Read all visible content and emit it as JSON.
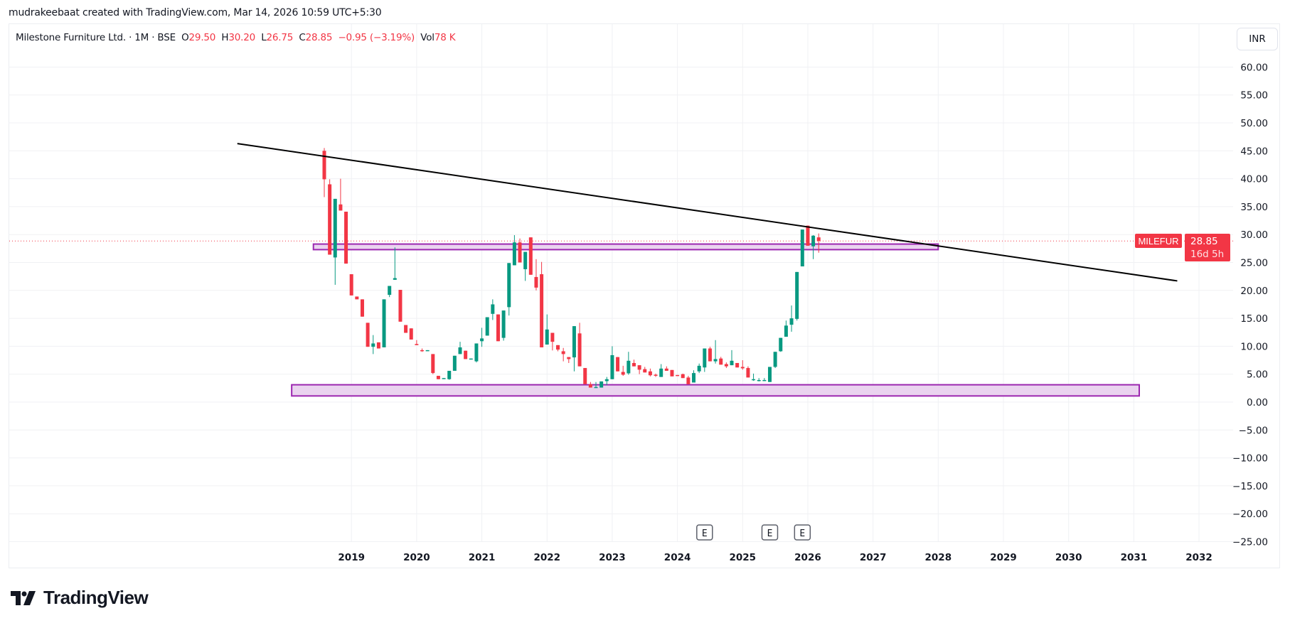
{
  "header": {
    "credit": "mudrakeebaat created with TradingView.com, Mar 14, 2026 10:59 UTC+5:30"
  },
  "legend": {
    "symbol_name": "Milestone Furniture Ltd.",
    "interval": "1M",
    "exchange": "BSE",
    "open_label": "O",
    "open": "29.50",
    "high_label": "H",
    "high": "30.20",
    "low_label": "L",
    "low": "26.75",
    "close_label": "C",
    "close": "28.85",
    "change": "−0.95 (−3.19%)",
    "vol_label": "Vol",
    "vol": "78 K",
    "separator": "·"
  },
  "currency": "INR",
  "price_tag": {
    "ticker": "MILEFUR",
    "price": "28.85",
    "countdown": "16d 5h"
  },
  "logo": {
    "text": "TradingView"
  },
  "colors": {
    "up": "#089981",
    "down": "#F23645",
    "zone_border": "#9C27B0",
    "zone_fill": "#EAD3EF",
    "trendline": "#000000",
    "grid": "#f0f1f4"
  },
  "chart_data": {
    "type": "candlestick",
    "interval": "1M",
    "start_month": "2018-08",
    "ylim": [
      -25,
      62
    ],
    "y_ticks": [
      "60.00",
      "55.00",
      "50.00",
      "45.00",
      "40.00",
      "35.00",
      "30.00",
      "25.00",
      "20.00",
      "15.00",
      "10.00",
      "5.00",
      "0.00",
      "−5.00",
      "−10.00",
      "−15.00",
      "−20.00",
      "−25.00"
    ],
    "x_ticks": [
      "2019",
      "2020",
      "2021",
      "2022",
      "2023",
      "2024",
      "2025",
      "2026",
      "2027",
      "2028",
      "2029",
      "2030",
      "2031",
      "2032"
    ],
    "last_price": 28.85,
    "candles": [
      [
        45.0,
        45.5,
        36.7,
        39.9
      ],
      [
        39.0,
        39.9,
        26.4,
        26.4
      ],
      [
        25.9,
        36.4,
        21.0,
        36.4
      ],
      [
        35.4,
        40.0,
        34.3,
        34.3
      ],
      [
        34.1,
        34.1,
        24.8,
        24.8
      ],
      [
        22.9,
        22.9,
        19.1,
        19.1
      ],
      [
        18.9,
        18.9,
        18.4,
        18.4
      ],
      [
        18.4,
        18.4,
        15.3,
        15.3
      ],
      [
        14.2,
        14.2,
        9.9,
        9.9
      ],
      [
        9.9,
        12.0,
        8.6,
        10.5
      ],
      [
        10.7,
        10.7,
        9.6,
        9.6
      ],
      [
        9.8,
        18.4,
        9.8,
        18.4
      ],
      [
        19.2,
        20.8,
        18.8,
        20.8
      ],
      [
        21.9,
        27.7,
        21.9,
        22.2
      ],
      [
        20.1,
        20.1,
        14.4,
        14.4
      ],
      [
        13.8,
        13.8,
        12.4,
        12.4
      ],
      [
        13.2,
        13.2,
        11.2,
        11.2
      ],
      [
        10.4,
        11.1,
        10.2,
        10.2
      ],
      [
        9.3,
        9.6,
        9.0,
        9.2
      ],
      [
        9.25,
        9.3,
        9.25,
        9.3
      ],
      [
        8.6,
        8.6,
        5.0,
        5.2
      ],
      [
        4.7,
        4.7,
        4.1,
        4.1
      ],
      [
        4.25,
        4.3,
        4.25,
        4.3
      ],
      [
        4.1,
        5.6,
        4.0,
        5.6
      ],
      [
        5.6,
        8.3,
        5.6,
        8.3
      ],
      [
        8.6,
        10.8,
        8.6,
        9.8
      ],
      [
        9.2,
        9.2,
        7.7,
        7.7
      ],
      [
        7.75,
        7.8,
        7.75,
        7.8
      ],
      [
        7.3,
        10.5,
        7.1,
        10.5
      ],
      [
        10.9,
        13.3,
        9.9,
        11.4
      ],
      [
        11.9,
        15.2,
        11.9,
        15.2
      ],
      [
        15.8,
        18.4,
        14.7,
        17.5
      ],
      [
        15.7,
        15.7,
        10.9,
        10.9
      ],
      [
        11.5,
        16.4,
        11.0,
        16.4
      ],
      [
        17.0,
        24.9,
        15.5,
        24.9
      ],
      [
        24.5,
        29.9,
        24.5,
        28.6
      ],
      [
        28.6,
        29.3,
        25.0,
        25.0
      ],
      [
        23.8,
        26.9,
        21.7,
        26.9
      ],
      [
        29.5,
        29.5,
        22.8,
        22.8
      ],
      [
        22.4,
        25.6,
        20.0,
        20.5
      ],
      [
        22.9,
        25.1,
        9.8,
        9.8
      ],
      [
        10.3,
        15.7,
        10.3,
        13.0
      ],
      [
        12.4,
        12.4,
        9.25,
        10.8
      ],
      [
        10.2,
        10.2,
        9.1,
        9.4
      ],
      [
        9.1,
        9.7,
        7.3,
        8.6
      ],
      [
        8.06,
        8.06,
        7.0,
        7.7
      ],
      [
        8.0,
        13.6,
        5.5,
        13.6
      ],
      [
        12.3,
        14.2,
        6.4,
        6.4
      ],
      [
        6.1,
        6.1,
        3.2,
        3.2
      ],
      [
        3.2,
        3.6,
        2.6,
        2.6
      ],
      [
        2.65,
        3.6,
        2.6,
        2.7
      ],
      [
        2.6,
        3.7,
        2.6,
        3.7
      ],
      [
        3.75,
        4.5,
        3.0,
        4.1
      ],
      [
        4.1,
        10.0,
        4.1,
        8.4
      ],
      [
        8.06,
        8.06,
        5.5,
        5.5
      ],
      [
        5.4,
        6.5,
        4.7,
        4.9
      ],
      [
        5.15,
        9.0,
        4.9,
        7.4
      ],
      [
        7.0,
        7.6,
        6.4,
        6.4
      ],
      [
        6.6,
        6.6,
        5.0,
        5.8
      ],
      [
        5.9,
        6.3,
        5.3,
        5.3
      ],
      [
        5.5,
        6.0,
        4.6,
        4.8
      ],
      [
        4.9,
        5.1,
        4.5,
        4.85
      ],
      [
        4.5,
        6.8,
        4.5,
        6.0
      ],
      [
        6.0,
        6.4,
        5.6,
        5.6
      ],
      [
        5.75,
        5.75,
        4.6,
        4.6
      ],
      [
        4.85,
        4.85,
        4.7,
        4.7
      ],
      [
        5.0,
        5.1,
        4.3,
        4.3
      ],
      [
        4.4,
        4.7,
        3.2,
        3.2
      ],
      [
        3.5,
        5.7,
        3.5,
        5.2
      ],
      [
        5.5,
        6.9,
        5.2,
        6.5
      ],
      [
        6.2,
        9.6,
        5.4,
        9.6
      ],
      [
        9.6,
        9.9,
        7.3,
        7.3
      ],
      [
        7.3,
        11.1,
        6.9,
        7.7
      ],
      [
        7.8,
        8.1,
        6.7,
        6.7
      ],
      [
        6.8,
        7.1,
        6.1,
        6.4
      ],
      [
        6.6,
        9.3,
        6.6,
        7.4
      ],
      [
        7.0,
        7.0,
        6.2,
        6.2
      ],
      [
        6.3,
        7.5,
        5.8,
        6.05
      ],
      [
        6.1,
        6.4,
        4.4,
        4.4
      ],
      [
        4.1,
        5.1,
        3.8,
        4.1
      ],
      [
        3.95,
        4.3,
        3.7,
        3.95
      ],
      [
        3.95,
        4.3,
        3.9,
        3.95
      ],
      [
        3.6,
        6.3,
        3.6,
        6.3
      ],
      [
        6.3,
        9.0,
        6.1,
        9.0
      ],
      [
        9.1,
        11.5,
        9.0,
        11.5
      ],
      [
        11.7,
        14.6,
        11.7,
        13.7
      ],
      [
        13.85,
        17.3,
        12.6,
        15.0
      ],
      [
        14.9,
        23.3,
        14.6,
        23.3
      ],
      [
        24.3,
        30.9,
        24.3,
        30.9
      ],
      [
        31.6,
        31.6,
        28.0,
        28.0
      ],
      [
        27.9,
        29.9,
        25.6,
        29.8
      ],
      [
        29.5,
        30.2,
        26.75,
        28.85
      ]
    ],
    "drawings": {
      "trendline": {
        "from": [
          "2017-04",
          46.3
        ],
        "to": [
          "2031-09",
          21.7
        ]
      },
      "zones": [
        {
          "from": "2018-06",
          "to": "2028-01",
          "top": 28.3,
          "bottom": 27.3
        },
        {
          "from": "2018-02",
          "to": "2031-02",
          "top": 3.1,
          "bottom": 1.1
        }
      ]
    },
    "earnings_markers": [
      {
        "month": "2024-06",
        "label": "E"
      },
      {
        "month": "2025-06",
        "label": "E"
      },
      {
        "month": "2025-12",
        "label": "E"
      }
    ]
  }
}
